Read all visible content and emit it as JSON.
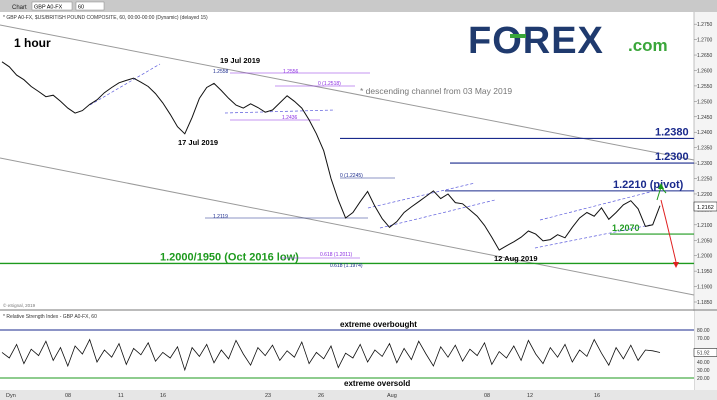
{
  "window": {
    "title": "Chart",
    "symbol_box": "GBP A0-FX",
    "interval_box": "60",
    "header_info": "* GBP A0-FX, $US/BRITISH POUND COMPOSITE, 60, 00:00-00:00 (Dynamic) (delayed 15)",
    "copyright": "© eSignal, 2019"
  },
  "logo": {
    "text": "FOREX",
    "suffix": ".com",
    "color_blue": "#1f3a6e",
    "color_green": "#3aa63a"
  },
  "price_panel": {
    "timeframe_label": "1 hour",
    "channel_label": "* descending channel from 03 May 2019",
    "current_price": "1.2162",
    "y_ticks": [
      "1.2750",
      "1.2700",
      "1.2650",
      "1.2600",
      "1.2550",
      "1.2500",
      "1.2450",
      "1.2400",
      "1.2350",
      "1.2300",
      "1.2250",
      "1.2200",
      "1.2150",
      "1.2100",
      "1.2050",
      "1.2000",
      "1.1950",
      "1.1900",
      "1.1850"
    ]
  },
  "levels": [
    {
      "label": "1.2380",
      "value": 1.238,
      "color": "#1a2a8c"
    },
    {
      "label": "1.2300",
      "value": 1.23,
      "color": "#1a2a8c"
    },
    {
      "label": "1.2210 (pivot)",
      "value": 1.221,
      "color": "#1a2a8c"
    },
    {
      "label": "1.2070",
      "value": 1.207,
      "color": "#1e9a1e"
    },
    {
      "label": "1.2000/1950 (Oct 2016 low)",
      "value": 1.1975,
      "color": "#1e9a1e"
    }
  ],
  "annotations": [
    {
      "text": "19 Jul 2019",
      "color": "#000000"
    },
    {
      "text": "17 Jul 2019",
      "color": "#000000"
    },
    {
      "text": "12 Aug 2019",
      "color": "#000000"
    },
    {
      "text": "1.2558",
      "color": "#1a2a8c"
    },
    {
      "text": "1.2556",
      "color": "#8a2be2"
    },
    {
      "text": "0 (1.2518)",
      "color": "#8a2be2"
    },
    {
      "text": "1.2436",
      "color": "#8a2be2"
    },
    {
      "text": "0 (1.2245)",
      "color": "#1a2a8c"
    },
    {
      "text": "1.2119",
      "color": "#1a2a8c"
    },
    {
      "text": "0.618 (1.2011)",
      "color": "#8a2be2"
    },
    {
      "text": "0.618 (1.1974)",
      "color": "#1a2a8c"
    }
  ],
  "rsi_panel": {
    "header": "* Relative Strength Index - GBP A0-FX, 60",
    "overbought_label": "extreme overbought",
    "oversold_label": "extreme oversold",
    "y_ticks": [
      "80.00",
      "70.00",
      "51.92",
      "40.00",
      "30.00",
      "20.00"
    ],
    "current_value": "51.92"
  },
  "x_axis": {
    "labels": [
      "Dyn",
      "08",
      "11",
      "16",
      "23",
      "26",
      "Aug",
      "08",
      "12",
      "16"
    ]
  },
  "chart_data": {
    "type": "line",
    "title": "",
    "xlabel": "",
    "ylabel": "",
    "ylim": [
      1.185,
      1.277
    ],
    "series": [
      {
        "values": [
          1.2628,
          1.2612,
          1.2585,
          1.257,
          1.2548,
          1.2532,
          1.2515,
          1.252,
          1.25,
          1.2478,
          1.2462,
          1.247,
          1.249,
          1.2505,
          1.2528,
          1.2545,
          1.256,
          1.2568,
          1.2575,
          1.2562,
          1.2548,
          1.2525,
          1.2495,
          1.2458,
          1.2418,
          1.2395,
          1.2448,
          1.251,
          1.2545,
          1.2558,
          1.2535,
          1.251,
          1.2488,
          1.2478,
          1.2492,
          1.248,
          1.2465,
          1.2472,
          1.2495,
          1.2518,
          1.25,
          1.2478,
          1.244,
          1.2395,
          1.234,
          1.225,
          1.218,
          1.2122,
          1.214,
          1.2175,
          1.2208,
          1.216,
          1.212,
          1.2092,
          1.211,
          1.214,
          1.2158,
          1.2175,
          1.2192,
          1.221,
          1.2185,
          1.22,
          1.2172,
          1.2168,
          1.2148,
          1.2128,
          1.2098,
          1.206,
          1.2018,
          1.2032,
          1.2045,
          1.206,
          1.208,
          1.207,
          1.2048,
          1.2052,
          1.2068,
          1.2058,
          1.2092,
          1.2122,
          1.214,
          1.2128,
          1.2155,
          1.2118,
          1.214,
          1.2165,
          1.2178,
          1.2152,
          1.2095,
          1.21,
          1.2162
        ]
      },
      {
        "name": "RSI",
        "values": [
          52,
          45,
          62,
          38,
          56,
          48,
          66,
          42,
          58,
          35,
          60,
          50,
          68,
          40,
          55,
          46,
          63,
          37,
          57,
          49,
          64,
          41,
          52,
          45,
          59,
          30,
          58,
          47,
          62,
          39,
          55,
          44,
          67,
          50,
          36,
          58,
          48,
          61,
          42,
          54,
          46,
          65,
          38,
          52,
          44,
          60,
          33,
          51,
          45,
          62,
          40,
          55,
          47,
          63,
          39,
          57,
          43,
          66,
          50,
          35,
          59,
          46,
          61,
          41,
          56,
          48,
          64,
          37,
          53,
          45,
          60,
          42,
          67,
          50,
          38,
          58,
          46,
          62,
          40,
          55,
          47,
          68,
          51,
          36,
          58,
          44,
          61,
          42,
          55,
          54,
          51.92
        ]
      }
    ]
  }
}
